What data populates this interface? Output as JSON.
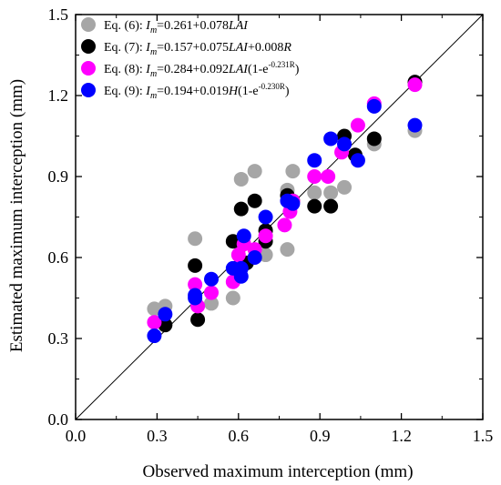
{
  "chart_data": {
    "type": "scatter",
    "xlabel": "Observed maximum interception (mm)",
    "ylabel": "Estimated  maximum interception (mm)",
    "xlim": [
      0.0,
      1.5
    ],
    "ylim": [
      0.0,
      1.5
    ],
    "xticks": [
      "0.0",
      "0.3",
      "0.6",
      "0.9",
      "1.2",
      "1.5"
    ],
    "yticks": [
      "0.0",
      "0.3",
      "0.6",
      "0.9",
      "1.2",
      "1.5"
    ],
    "reference_line": "1:1",
    "grid": false,
    "legend_position": "top-left",
    "series": [
      {
        "name": "Eq. (6): Im=0.261+0.078LAI",
        "legend": {
          "prefix": "Eq. (6): ",
          "var": "I",
          "sub": "m",
          "formula": "=0.261+0.078",
          "italic_tail": "LAI",
          "tail": "",
          "sup": "",
          "after_sup": ""
        },
        "color": "#a6a6a6",
        "points": [
          [
            0.29,
            0.41
          ],
          [
            0.33,
            0.42
          ],
          [
            0.44,
            0.67
          ],
          [
            0.5,
            0.43
          ],
          [
            0.58,
            0.45
          ],
          [
            0.61,
            0.89
          ],
          [
            0.66,
            0.92
          ],
          [
            0.7,
            0.61
          ],
          [
            0.78,
            0.63
          ],
          [
            0.78,
            0.85
          ],
          [
            0.8,
            0.92
          ],
          [
            0.88,
            0.84
          ],
          [
            0.94,
            0.84
          ],
          [
            0.99,
            0.86
          ],
          [
            1.1,
            1.02
          ],
          [
            1.25,
            1.07
          ]
        ]
      },
      {
        "name": "Eq. (7): Im=0.157+0.075LAI+0.008R",
        "legend": {
          "prefix": "Eq. (7): ",
          "var": "I",
          "sub": "m",
          "formula": "=0.157+0.075",
          "italic_tail": "LAI",
          "tail": "+0.008",
          "italic_end": "R",
          "sup": "",
          "after_sup": ""
        },
        "color": "#000000",
        "points": [
          [
            0.33,
            0.35
          ],
          [
            0.44,
            0.57
          ],
          [
            0.45,
            0.37
          ],
          [
            0.58,
            0.66
          ],
          [
            0.61,
            0.78
          ],
          [
            0.63,
            0.58
          ],
          [
            0.66,
            0.81
          ],
          [
            0.7,
            0.66
          ],
          [
            0.7,
            0.7
          ],
          [
            0.78,
            0.83
          ],
          [
            0.8,
            0.81
          ],
          [
            0.88,
            0.79
          ],
          [
            0.94,
            0.79
          ],
          [
            0.99,
            1.05
          ],
          [
            1.03,
            0.98
          ],
          [
            1.1,
            1.04
          ],
          [
            1.25,
            1.25
          ]
        ]
      },
      {
        "name": "Eq. (8): Im=0.284+0.092LAI(1-e-0.231R)",
        "legend": {
          "prefix": "Eq. (8): ",
          "var": "I",
          "sub": "m",
          "formula": "=0.284+0.092",
          "italic_tail": "LAI",
          "tail": "(1-e",
          "sup": "-0.231R",
          "after_sup": ")"
        },
        "color": "#ff00ff",
        "points": [
          [
            0.29,
            0.36
          ],
          [
            0.44,
            0.5
          ],
          [
            0.45,
            0.42
          ],
          [
            0.5,
            0.47
          ],
          [
            0.58,
            0.51
          ],
          [
            0.6,
            0.61
          ],
          [
            0.62,
            0.65
          ],
          [
            0.66,
            0.63
          ],
          [
            0.7,
            0.68
          ],
          [
            0.77,
            0.72
          ],
          [
            0.79,
            0.77
          ],
          [
            0.8,
            0.81
          ],
          [
            0.88,
            0.9
          ],
          [
            0.93,
            0.9
          ],
          [
            0.98,
            0.99
          ],
          [
            1.04,
            1.09
          ],
          [
            1.1,
            1.17
          ],
          [
            1.25,
            1.24
          ]
        ]
      },
      {
        "name": "Eq. (9): Im=0.194+0.019H(1-e-0.230R)",
        "legend": {
          "prefix": "Eq. (9): ",
          "var": "I",
          "sub": "m",
          "formula": "=0.194+0.019",
          "italic_tail": "H",
          "tail": "(1-e",
          "sup": "-0.230R",
          "after_sup": ")"
        },
        "color": "#0000ff",
        "points": [
          [
            0.29,
            0.31
          ],
          [
            0.33,
            0.39
          ],
          [
            0.44,
            0.45
          ],
          [
            0.44,
            0.46
          ],
          [
            0.5,
            0.52
          ],
          [
            0.58,
            0.56
          ],
          [
            0.61,
            0.53
          ],
          [
            0.61,
            0.56
          ],
          [
            0.62,
            0.68
          ],
          [
            0.66,
            0.6
          ],
          [
            0.7,
            0.75
          ],
          [
            0.78,
            0.81
          ],
          [
            0.8,
            0.8
          ],
          [
            0.88,
            0.96
          ],
          [
            0.94,
            1.04
          ],
          [
            0.99,
            1.02
          ],
          [
            1.04,
            0.96
          ],
          [
            1.1,
            1.16
          ],
          [
            1.25,
            1.09
          ]
        ]
      }
    ]
  }
}
